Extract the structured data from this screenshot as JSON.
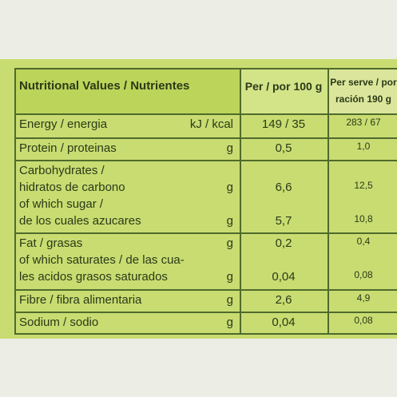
{
  "header": {
    "nutrient": "Nutritional Values / Nutrientes",
    "per_100g": "Per / por 100 g",
    "per_serve": [
      "Per serve / por",
      "ración 190 g"
    ]
  },
  "rows": [
    {
      "items": [
        {
          "lines": [
            "Energy / energia"
          ],
          "unit": "kJ / kcal",
          "per_100g": "149 / 35",
          "per_serve": "283 / 67"
        }
      ]
    },
    {
      "items": [
        {
          "lines": [
            "Protein / proteinas"
          ],
          "unit": "g",
          "per_100g": "0,5",
          "per_serve": "1,0"
        }
      ]
    },
    {
      "items": [
        {
          "lines": [
            "Carbohydrates /",
            "hidratos de carbono"
          ],
          "unit": "g",
          "per_100g": "6,6",
          "per_serve": "12,5"
        },
        {
          "lines": [
            "of which sugar /",
            "de los cuales azucares"
          ],
          "unit": "g",
          "per_100g": "5,7",
          "per_serve": "10,8"
        }
      ]
    },
    {
      "items": [
        {
          "lines": [
            "Fat / grasas"
          ],
          "unit": "g",
          "per_100g": "0,2",
          "per_serve": "0,4"
        },
        {
          "lines": [
            "of which saturates / de las cua-",
            "les acidos grasos saturados"
          ],
          "unit": "g",
          "per_100g": "0,04",
          "per_serve": "0,08"
        }
      ]
    },
    {
      "items": [
        {
          "lines": [
            "Fibre / fibra alimentaria"
          ],
          "unit": "g",
          "per_100g": "2,6",
          "per_serve": "4,9"
        }
      ]
    },
    {
      "items": [
        {
          "lines": [
            "Sodium / sodio"
          ],
          "unit": "g",
          "per_100g": "0,04",
          "per_serve": "0,08"
        }
      ]
    }
  ]
}
